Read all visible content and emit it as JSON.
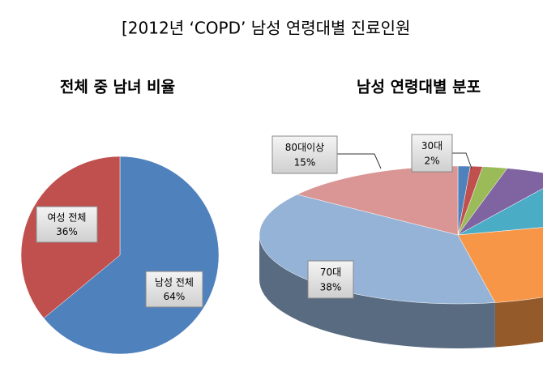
{
  "title": "[2012년 ‘COPD’ 남성 연령대별 진료인원",
  "chart_data": [
    {
      "type": "pie",
      "title": "전체 중 남녀 비율",
      "categories": [
        "남성 전체",
        "여성 전체"
      ],
      "values": [
        64,
        36
      ],
      "value_labels": [
        "64%",
        "36%"
      ],
      "colors": [
        "#4f81bd",
        "#c0504d"
      ]
    },
    {
      "type": "pie3d",
      "title": "남성 연령대별 분포",
      "categories": [
        null,
        null,
        "30대",
        null,
        null,
        null,
        "70대",
        "80대이상"
      ],
      "values": [
        1,
        1,
        2,
        5,
        12,
        26,
        38,
        15
      ],
      "value_labels": [
        null,
        null,
        "2%",
        null,
        null,
        null,
        "38%",
        "15%"
      ],
      "colors": [
        "#4f81bd",
        "#c0504d",
        "#9bbb59",
        "#8064a2",
        "#4bacc6",
        "#f79646",
        "#95b3d7",
        "#d99694"
      ]
    }
  ]
}
